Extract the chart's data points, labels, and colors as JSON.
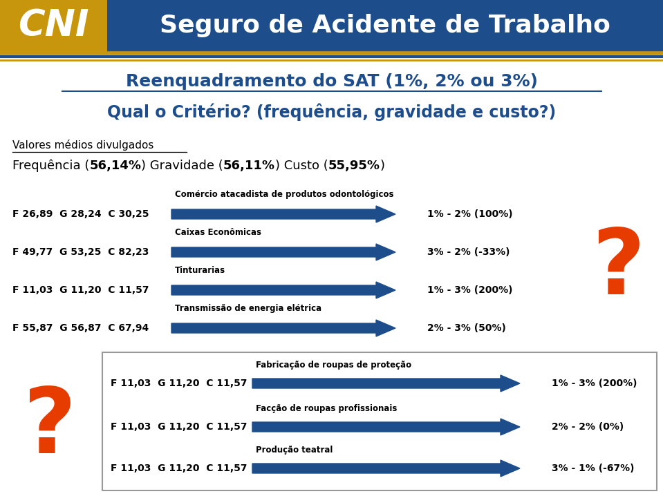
{
  "header_bg": "#1e4d8c",
  "header_gold": "#c8960c",
  "header_text": "Seguro de Acidente de Trabalho",
  "title1": "Reenquadramento do SAT (1%, 2% ou 3%)",
  "title2": "Qual o Critério? (frequência, gravidade e custo?)",
  "subtitle_under": "Valores médios divulgados",
  "arrow_color": "#1e4d8c",
  "text_color_blue": "#1e4d8c",
  "orange_q": "#e63c00",
  "rows_top": [
    {
      "fgc": "F 26,89  G 28,24  C 30,25",
      "label": "Comércio atacadista de produtos odontológicos",
      "result": "1% - 2% (100%)"
    },
    {
      "fgc": "F 49,77  G 53,25  C 82,23",
      "label": "Caixas Econômicas",
      "result": "3% - 2% (-33%)"
    },
    {
      "fgc": "F 11,03  G 11,20  C 11,57",
      "label": "Tinturarias",
      "result": "1% - 3% (200%)"
    },
    {
      "fgc": "F 55,87  G 56,87  C 67,94",
      "label": "Transmissão de energia elétrica",
      "result": "2% - 3% (50%)"
    }
  ],
  "rows_box": [
    {
      "fgc": "F 11,03  G 11,20  C 11,57",
      "label": "Fabricação de roupas de proteção",
      "result": "1% - 3% (200%)"
    },
    {
      "fgc": "F 11,03  G 11,20  C 11,57",
      "label": "Facção de roupas profissionais",
      "result": "2% - 2% (0%)"
    },
    {
      "fgc": "F 11,03  G 11,20  C 11,57",
      "label": "Produção teatral",
      "result": "3% - 1% (-67%)"
    }
  ]
}
